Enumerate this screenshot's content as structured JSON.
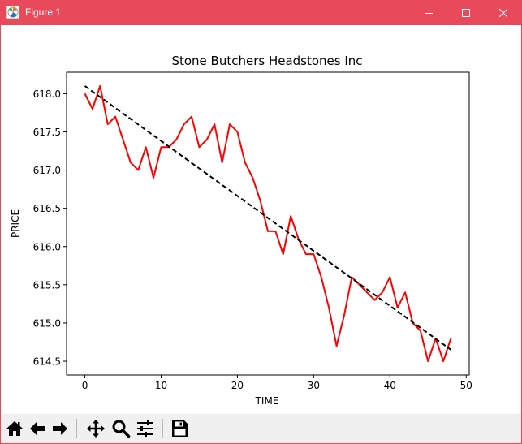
{
  "window": {
    "title": "Figure 1",
    "app_icon": "matplotlib-icon",
    "controls": [
      "minimize-icon",
      "maximize-icon",
      "close-icon"
    ],
    "titlebar_color": "#e94a5b"
  },
  "toolbar": {
    "buttons": [
      {
        "name": "home",
        "icon": "home-icon"
      },
      {
        "name": "back",
        "icon": "arrow-left-icon"
      },
      {
        "name": "forward",
        "icon": "arrow-right-icon"
      },
      {
        "name": "pan",
        "icon": "move-icon"
      },
      {
        "name": "zoom",
        "icon": "magnifier-icon"
      },
      {
        "name": "configure-subplots",
        "icon": "sliders-icon"
      },
      {
        "name": "save",
        "icon": "floppy-disk-icon"
      }
    ]
  },
  "chart_data": {
    "type": "line",
    "title": "Stone Butchers Headstones Inc",
    "xlabel": "TIME",
    "ylabel": "PRICE",
    "xlim": [
      -2.4,
      50.4
    ],
    "ylim": [
      614.32,
      618.28
    ],
    "xticks": [
      0,
      10,
      20,
      30,
      40,
      50
    ],
    "yticks": [
      614.5,
      615.0,
      615.5,
      616.0,
      616.5,
      617.0,
      617.5,
      618.0
    ],
    "ytick_labels": [
      "614.5",
      "615.0",
      "615.5",
      "616.0",
      "616.5",
      "617.0",
      "617.5",
      "618.0"
    ],
    "grid": false,
    "series": [
      {
        "style": "solid",
        "color": "#ff0000",
        "x": [
          0,
          1,
          2,
          3,
          4,
          5,
          6,
          7,
          8,
          9,
          10,
          11,
          12,
          13,
          14,
          15,
          16,
          17,
          18,
          19,
          20,
          21,
          22,
          23,
          24,
          25,
          26,
          27,
          28,
          29,
          30,
          31,
          32,
          33,
          34,
          35,
          36,
          37,
          38,
          39,
          40,
          41,
          42,
          43,
          44,
          45,
          46,
          47,
          48
        ],
        "y": [
          618.0,
          617.8,
          618.1,
          617.6,
          617.7,
          617.4,
          617.1,
          617.0,
          617.3,
          616.9,
          617.3,
          617.3,
          617.4,
          617.6,
          617.7,
          617.3,
          617.4,
          617.6,
          617.1,
          617.6,
          617.5,
          617.1,
          616.9,
          616.6,
          616.2,
          616.2,
          615.9,
          616.4,
          616.1,
          615.9,
          615.9,
          615.6,
          615.2,
          614.7,
          615.1,
          615.6,
          615.5,
          615.4,
          615.3,
          615.4,
          615.6,
          615.2,
          615.4,
          615.0,
          614.9,
          614.5,
          614.8,
          614.5,
          614.8
        ]
      },
      {
        "style": "dashed",
        "color": "#000000",
        "x": [
          0,
          48
        ],
        "y": [
          618.1,
          614.65
        ]
      }
    ]
  }
}
